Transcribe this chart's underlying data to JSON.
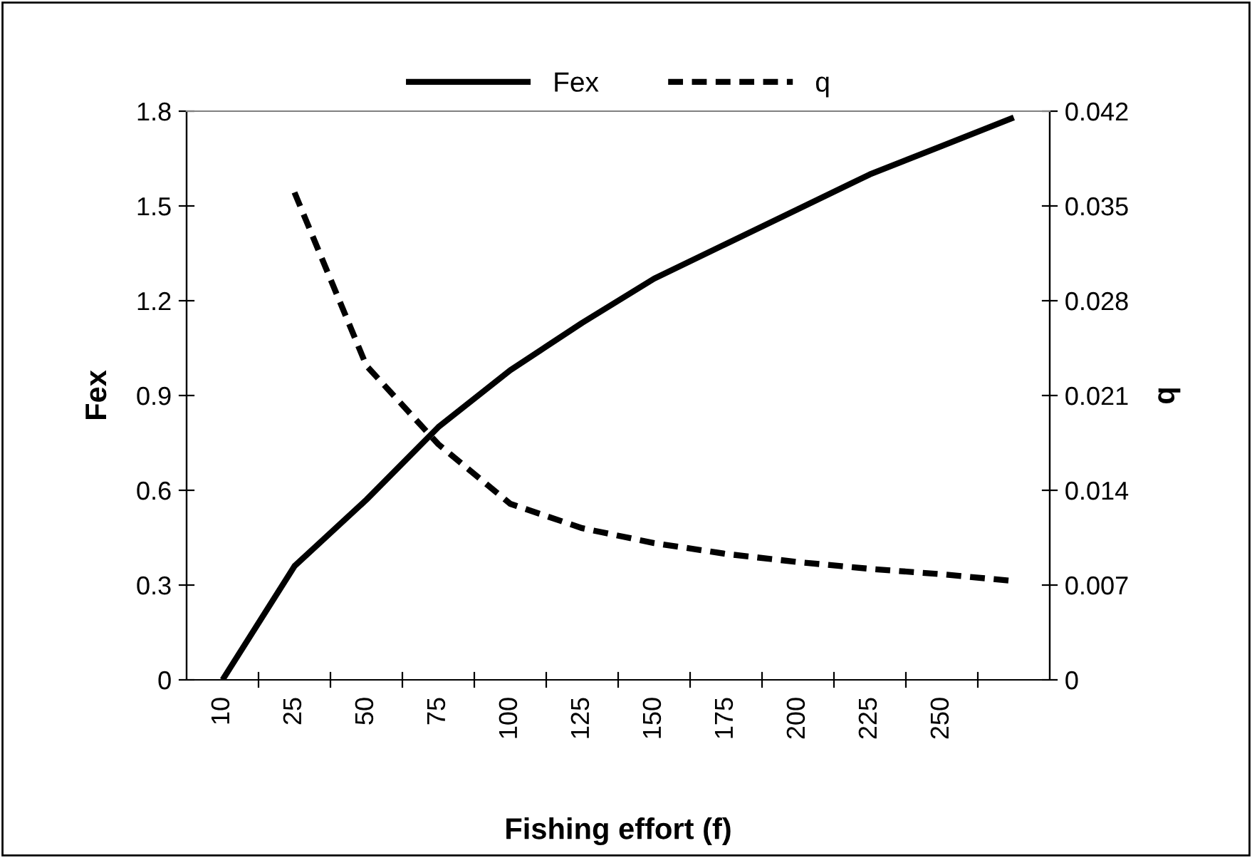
{
  "chart_data": {
    "type": "line",
    "xlabel": "Fishing effort (f)",
    "ylabel": "Fex",
    "y2label": "q",
    "categories": [
      "10",
      "25",
      "50",
      "75",
      "100",
      "125",
      "150",
      "175",
      "200",
      "225",
      "250",
      null
    ],
    "series": [
      {
        "name": "Fex",
        "color": "#000000",
        "line_style": "solid",
        "values": [
          0,
          0.36,
          0.57,
          0.8,
          0.98,
          1.13,
          1.27,
          1.38,
          1.49,
          1.6,
          1.69,
          1.78
        ]
      },
      {
        "name": "q",
        "color": "#000000",
        "line_style": "dashed",
        "axis": "y2",
        "values": [
          null,
          0.036,
          0.0232,
          0.0174,
          0.013,
          0.0112,
          0.0101,
          0.0093,
          0.0087,
          0.0082,
          0.0078,
          0.0073
        ]
      }
    ],
    "ylim": [
      0,
      1.8
    ],
    "yticks": [
      0,
      0.3,
      0.6,
      0.9,
      1.2,
      1.5,
      1.8
    ],
    "y2lim": [
      0,
      0.042
    ],
    "y2ticks": [
      0,
      0.007,
      0.014,
      0.021,
      0.028,
      0.035,
      0.042
    ],
    "legend": "top",
    "grid": false,
    "marker": "none"
  }
}
